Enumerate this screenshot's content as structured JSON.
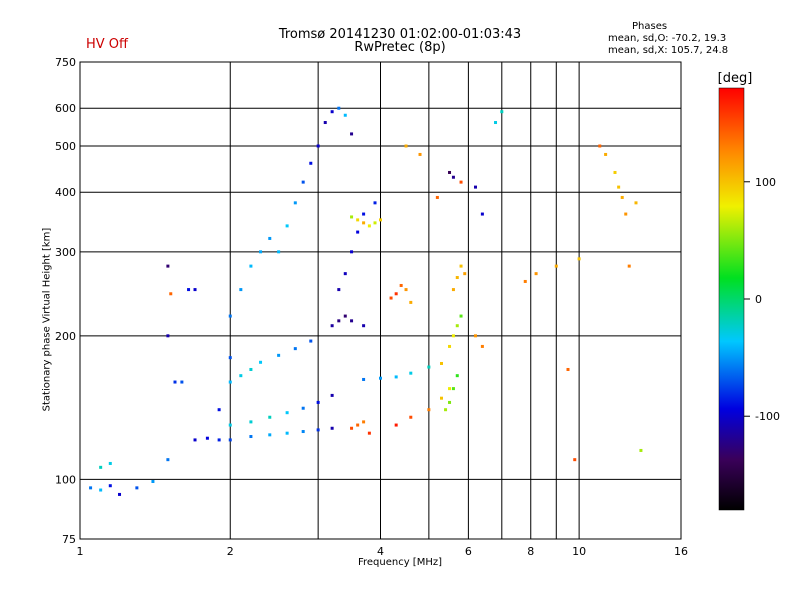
{
  "header": {
    "title_line1": "Tromsø 20141230 01:02:00-01:03:43",
    "title_line2": "RwPretec (8p)",
    "hv_status": "HV Off",
    "phases_title": "Phases",
    "phases_o": "mean, sd,O: -70.2, 19.3",
    "phases_x": "mean, sd,X: 105.7, 24.8"
  },
  "colorbar": {
    "unit_label": "[deg]",
    "ticks": [
      {
        "label": "100",
        "value": 100
      },
      {
        "label": "0",
        "value": 0
      },
      {
        "label": "-100",
        "value": -100
      }
    ],
    "range": [
      -180,
      180
    ]
  },
  "chart_data": {
    "type": "scatter",
    "title": "Tromsø 20141230 01:02:00-01:03:43",
    "subtitle": "RwPretec (8p)",
    "xlabel": "Frequency [MHz]",
    "ylabel": "Stationary phase Virtual Height [km]",
    "x_scale": "log",
    "y_scale": "log",
    "xlim": [
      1,
      16
    ],
    "ylim": [
      75,
      750
    ],
    "x_ticks": [
      {
        "label": "1",
        "value": 1
      },
      {
        "label": "2",
        "value": 2
      },
      {
        "label": "4",
        "value": 4
      },
      {
        "label": "6",
        "value": 6
      },
      {
        "label": "8",
        "value": 8
      },
      {
        "label": "10",
        "value": 10
      },
      {
        "label": "16",
        "value": 16
      }
    ],
    "x_minor": [
      3,
      5,
      7,
      9
    ],
    "y_ticks": [
      {
        "label": "75",
        "value": 75
      },
      {
        "label": "100",
        "value": 100
      },
      {
        "label": "200",
        "value": 200
      },
      {
        "label": "300",
        "value": 300
      },
      {
        "label": "400",
        "value": 400
      },
      {
        "label": "500",
        "value": 500
      },
      {
        "label": "600",
        "value": 600
      },
      {
        "label": "750",
        "value": 750
      }
    ],
    "grid": true,
    "color_scale": "phase [deg], black(-180) -> blue -> cyan -> green -> yellow -> red(180)",
    "series": [
      {
        "x": [
          1.05,
          1.1,
          1.15,
          1.2,
          1.3,
          1.4
        ],
        "y": [
          96,
          95,
          97,
          93,
          96,
          99
        ],
        "phase": [
          -60,
          -40,
          -90,
          -100,
          -70,
          -50
        ]
      },
      {
        "x": [
          1.1,
          1.15
        ],
        "y": [
          106,
          108
        ],
        "phase": [
          -20,
          -30
        ]
      },
      {
        "x": [
          1.5,
          1.52,
          1.5,
          1.55,
          1.5
        ],
        "y": [
          280,
          245,
          200,
          160,
          110
        ],
        "phase": [
          -130,
          140,
          -110,
          -80,
          -60
        ]
      },
      {
        "x": [
          1.6,
          1.65,
          1.7
        ],
        "y": [
          160,
          250,
          250
        ],
        "phase": [
          -70,
          -90,
          -100
        ]
      },
      {
        "x": [
          1.7,
          1.8,
          1.9,
          2.0,
          2.2,
          2.4,
          2.6,
          2.8,
          3.0,
          3.2
        ],
        "y": [
          121,
          122,
          121,
          121,
          123,
          124,
          125,
          126,
          127,
          128
        ],
        "phase": [
          -100,
          -95,
          -85,
          -75,
          -60,
          -45,
          -40,
          -55,
          -80,
          -110
        ]
      },
      {
        "x": [
          2.0,
          2.2,
          2.4,
          2.6,
          2.8,
          3.0,
          3.2
        ],
        "y": [
          130,
          132,
          135,
          138,
          141,
          145,
          150
        ],
        "phase": [
          -30,
          -25,
          -20,
          -35,
          -60,
          -90,
          -110
        ]
      },
      {
        "x": [
          2.0,
          2.1,
          2.2,
          2.3,
          2.5,
          2.7,
          2.9
        ],
        "y": [
          160,
          165,
          170,
          176,
          182,
          188,
          195
        ],
        "phase": [
          -40,
          -30,
          -25,
          -35,
          -50,
          -60,
          -70
        ]
      },
      {
        "x": [
          1.9,
          2.0,
          2.0,
          2.1,
          2.2,
          2.3,
          2.4
        ],
        "y": [
          140,
          180,
          220,
          250,
          280,
          300,
          320
        ],
        "phase": [
          -90,
          -70,
          -60,
          -50,
          -40,
          -45,
          -50
        ]
      },
      {
        "x": [
          2.5,
          2.6,
          2.7,
          2.8,
          2.9,
          3.0
        ],
        "y": [
          300,
          340,
          380,
          420,
          460,
          500
        ],
        "phase": [
          -40,
          -35,
          -50,
          -70,
          -90,
          -100
        ]
      },
      {
        "x": [
          3.1,
          3.2,
          3.3,
          3.4,
          3.5
        ],
        "y": [
          560,
          590,
          600,
          580,
          530
        ],
        "phase": [
          -110,
          -100,
          -60,
          -40,
          -120
        ]
      },
      {
        "x": [
          3.2,
          3.3,
          3.4,
          3.5,
          3.7
        ],
        "y": [
          210,
          215,
          220,
          215,
          210
        ],
        "phase": [
          -115,
          -125,
          -130,
          -120,
          -110
        ]
      },
      {
        "x": [
          3.3,
          3.4,
          3.5,
          3.6,
          3.7,
          3.9
        ],
        "y": [
          250,
          270,
          300,
          330,
          360,
          380
        ],
        "phase": [
          -110,
          -105,
          -100,
          -95,
          -90,
          -85
        ]
      },
      {
        "x": [
          3.5,
          3.6,
          3.7,
          3.8,
          3.9,
          4.0
        ],
        "y": [
          355,
          350,
          345,
          340,
          345,
          350
        ],
        "phase": [
          60,
          90,
          110,
          80,
          70,
          95
        ]
      },
      {
        "x": [
          3.5,
          3.6,
          3.7,
          3.8
        ],
        "y": [
          128,
          130,
          132,
          125
        ],
        "phase": [
          150,
          140,
          130,
          160
        ]
      },
      {
        "x": [
          3.7,
          4.0,
          4.3,
          4.6,
          5.0
        ],
        "y": [
          162,
          163,
          164,
          167,
          172
        ],
        "phase": [
          -60,
          -50,
          -40,
          -30,
          -20
        ]
      },
      {
        "x": [
          4.2,
          4.3,
          4.4,
          4.5,
          4.6
        ],
        "y": [
          240,
          245,
          255,
          250,
          235
        ],
        "phase": [
          150,
          160,
          140,
          120,
          110
        ]
      },
      {
        "x": [
          4.3,
          4.6,
          5.0,
          5.3,
          5.5
        ],
        "y": [
          130,
          135,
          140,
          148,
          155
        ],
        "phase": [
          170,
          150,
          130,
          100,
          80
        ]
      },
      {
        "x": [
          5.3,
          5.5,
          5.6,
          5.7,
          5.8
        ],
        "y": [
          175,
          190,
          200,
          210,
          220
        ],
        "phase": [
          100,
          90,
          80,
          60,
          40
        ]
      },
      {
        "x": [
          5.4,
          5.5,
          5.6,
          5.7
        ],
        "y": [
          140,
          145,
          155,
          165
        ],
        "phase": [
          60,
          50,
          40,
          30
        ]
      },
      {
        "x": [
          5.6,
          5.7,
          5.8,
          5.9
        ],
        "y": [
          250,
          265,
          280,
          270
        ],
        "phase": [
          110,
          105,
          100,
          115
        ]
      },
      {
        "x": [
          5.5,
          5.6,
          5.8,
          6.2,
          6.4
        ],
        "y": [
          440,
          430,
          420,
          410,
          360
        ],
        "phase": [
          -140,
          -120,
          150,
          -110,
          -100
        ]
      },
      {
        "x": [
          4.5,
          4.8,
          5.2
        ],
        "y": [
          500,
          480,
          390
        ],
        "phase": [
          110,
          120,
          140
        ]
      },
      {
        "x": [
          6.2,
          6.4,
          6.8,
          7.0
        ],
        "y": [
          200,
          190,
          560,
          590
        ],
        "phase": [
          120,
          130,
          -30,
          -20
        ]
      },
      {
        "x": [
          7.8,
          8.2,
          9.0,
          9.5,
          9.8,
          10.0
        ],
        "y": [
          260,
          270,
          280,
          170,
          110,
          290
        ],
        "phase": [
          130,
          120,
          110,
          140,
          150,
          100
        ]
      },
      {
        "x": [
          11,
          11.3,
          11.8,
          12.0,
          12.2,
          12.4,
          12.6
        ],
        "y": [
          500,
          480,
          440,
          410,
          390,
          360,
          280
        ],
        "phase": [
          140,
          110,
          95,
          100,
          110,
          120,
          130
        ]
      },
      {
        "x": [
          13.0,
          13.3
        ],
        "y": [
          380,
          115
        ],
        "phase": [
          105,
          60
        ]
      }
    ]
  }
}
